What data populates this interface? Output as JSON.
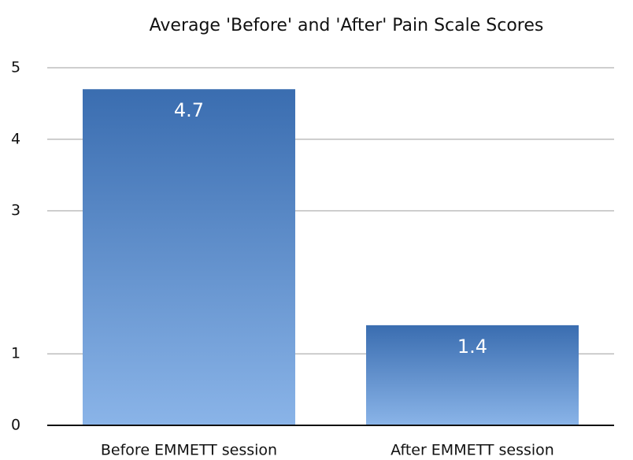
{
  "chart_data": {
    "type": "bar",
    "title": "Average 'Before' and 'After' Pain Scale Scores",
    "categories": [
      "Before EMMETT session",
      "After EMMETT session"
    ],
    "values": [
      4.7,
      1.4
    ],
    "color": "#3a6db0",
    "color_light": "#8ab4e8",
    "ylim": [
      0,
      5
    ],
    "yticks": [
      0,
      1,
      3,
      4,
      5
    ],
    "grid": true
  }
}
